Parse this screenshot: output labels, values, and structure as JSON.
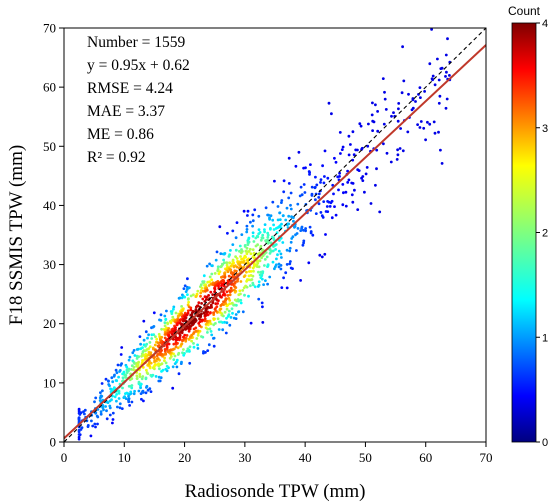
{
  "chart_data": {
    "type": "scatter",
    "xlabel": "Radiosonde TPW (mm)",
    "ylabel": "F18 SSMIS TPW (mm)",
    "xlim": [
      0,
      70
    ],
    "ylim": [
      0,
      70
    ],
    "xticks": [
      "0",
      "10",
      "20",
      "30",
      "40",
      "50",
      "60",
      "70"
    ],
    "yticks": [
      "0",
      "10",
      "20",
      "30",
      "40",
      "50",
      "60",
      "70"
    ],
    "n_points": 1559,
    "fit": {
      "slope": 0.95,
      "intercept": 0.62,
      "color": "#c0392b"
    },
    "reference_line": {
      "slope": 1,
      "intercept": 0,
      "style": "dashed",
      "color": "#000000"
    },
    "stats": [
      "Number = 1559",
      "y = 0.95x + 0.62",
      "RMSE = 4.24",
      "MAE = 3.37",
      "ME = 0.86",
      "R² = 0.92"
    ],
    "colorbar": {
      "title": "Count",
      "min": 0,
      "max": 4,
      "ticks": [
        "0",
        "1",
        "2",
        "3",
        "4"
      ],
      "colormap": "jet"
    },
    "grid": false
  }
}
